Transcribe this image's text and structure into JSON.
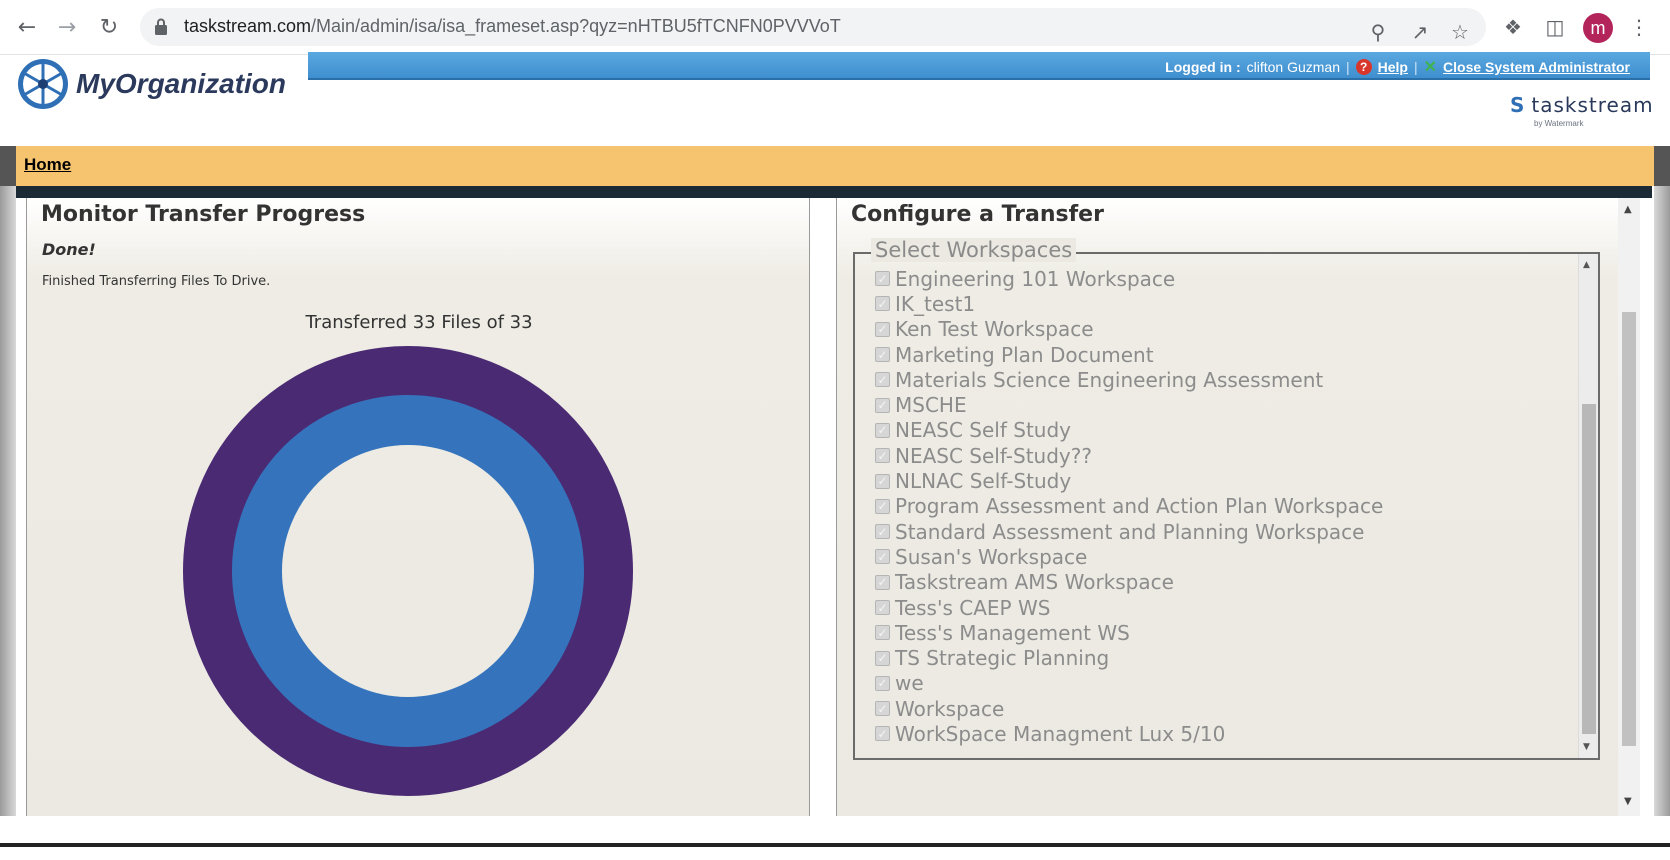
{
  "browser": {
    "url_domain": "taskstream.com",
    "url_path": "/Main/admin/isa/isa_frameset.asp?qyz=nHTBU5fTCNFN0PVVVoT",
    "profile_initial": "m"
  },
  "header": {
    "brand": "MyOrganization",
    "logged_in_label": "Logged in :",
    "user_name": "clifton Guzman",
    "help_label": "Help",
    "close_label": "Close System Administrator",
    "ts_logo_text": "taskstream",
    "ts_logo_sub": "by Watermark"
  },
  "nav": {
    "home": "Home"
  },
  "monitor": {
    "title": "Monitor Transfer Progress",
    "status": "Done!",
    "message": "Finished Transferring Files To Drive.",
    "progress_label": "Transferred 33 Files of 33",
    "files_transferred": 33,
    "files_total": 33
  },
  "configure": {
    "title": "Configure a Transfer",
    "legend": "Select Workspaces",
    "workspaces": [
      "Engineering 101 Workspace",
      "IK_test1",
      "Ken Test Workspace",
      "Marketing Plan Document",
      "Materials Science Engineering Assessment",
      "MSCHE",
      "NEASC Self Study",
      "NEASC Self-Study??",
      "NLNAC Self-Study",
      "Program Assessment and Action Plan Workspace",
      "Standard Assessment and Planning Workspace",
      "Susan's Workspace",
      "Taskstream AMS Workspace",
      "Tess's CAEP WS",
      "Tess's Management WS",
      "TS Strategic Planning",
      "we",
      "Workspace",
      "WorkSpace Managment Lux 5/10"
    ]
  },
  "colors": {
    "outer_ring": "#4a2a73",
    "inner_ring": "#3574bd",
    "nav_strip": "#f6c46e",
    "top_bar": "#4a9bd8"
  }
}
